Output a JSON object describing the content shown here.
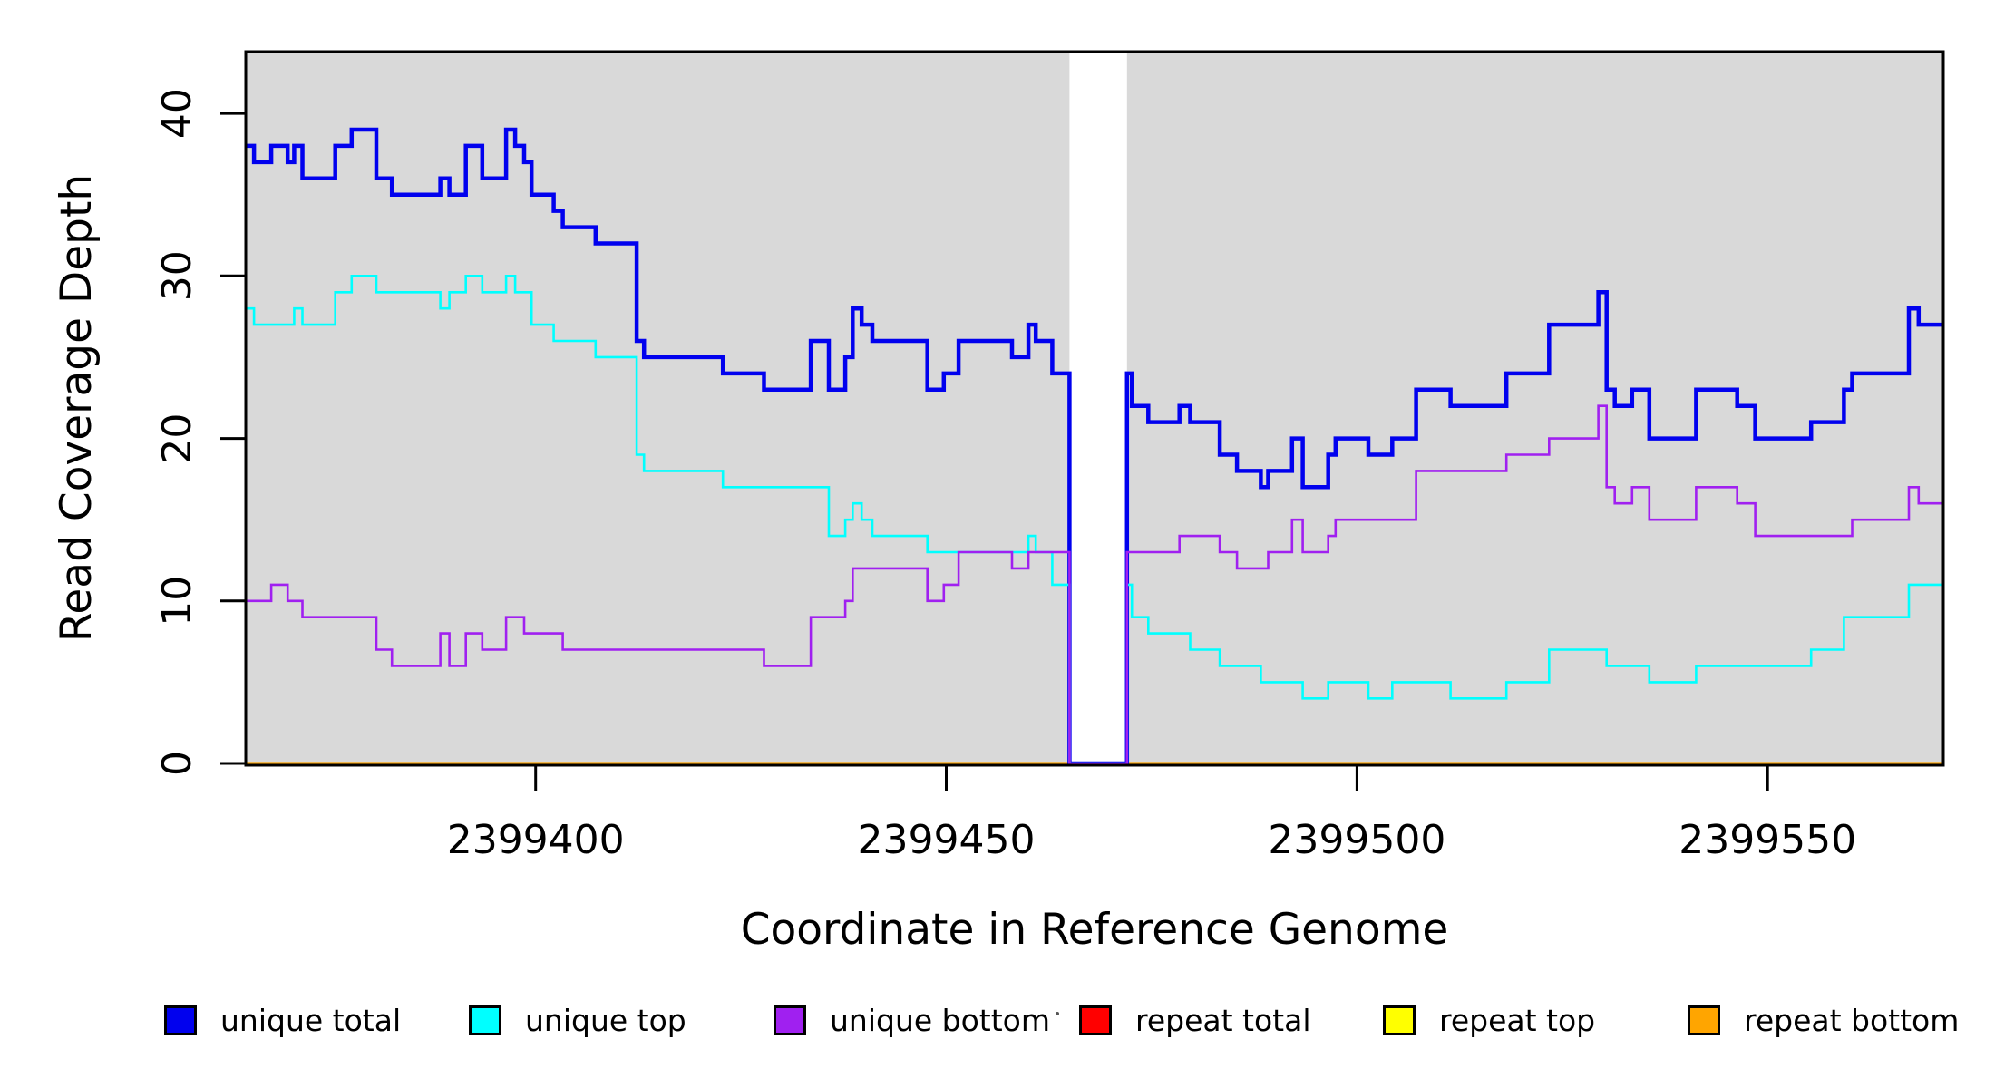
{
  "figure": {
    "background": "#FFFFFF",
    "plot_background": "#D9D9D9",
    "no_data_band_color": "#FFFFFF",
    "box_color": "#000000"
  },
  "chart_data": {
    "type": "line",
    "subtype": "step",
    "title": "",
    "xlabel": "Coordinate in Reference Genome",
    "ylabel": "Read Coverage Depth",
    "xlim": [
      2399364.7,
      2399571.4
    ],
    "ylim": [
      0,
      43.8
    ],
    "grid": false,
    "legend_position": "bottom",
    "x_ticks": {
      "values": [
        2399400,
        2399450,
        2399500,
        2399550
      ],
      "labels": [
        "2399400",
        "2399450",
        "2399500",
        "2399550"
      ]
    },
    "y_ticks": {
      "values": [
        0,
        10,
        20,
        30,
        40
      ],
      "labels": [
        "0",
        "10",
        "20",
        "30",
        "40"
      ]
    },
    "no_data_region": {
      "x_start": 2399465,
      "x_end": 2399472
    },
    "series": [
      {
        "name": "repeat total",
        "color": "#FF0000",
        "width": 3,
        "points": [
          [
            2399364.7,
            0
          ],
          [
            2399571.4,
            0
          ]
        ]
      },
      {
        "name": "repeat top",
        "color": "#FFFF00",
        "width": 3,
        "points": [
          [
            2399364.7,
            0
          ],
          [
            2399571.4,
            0
          ]
        ]
      },
      {
        "name": "repeat bottom",
        "color": "#FFA500",
        "width": 3.2,
        "points": [
          [
            2399364.7,
            0
          ],
          [
            2399571.4,
            0
          ]
        ]
      },
      {
        "name": "unique total",
        "color": "#0101EE",
        "width": 4.5,
        "points": [
          [
            2399364.7,
            38
          ],
          [
            2399365.7,
            37
          ],
          [
            2399367.8,
            38
          ],
          [
            2399369.8,
            37
          ],
          [
            2399370.6,
            38
          ],
          [
            2399371.6,
            36
          ],
          [
            2399375.6,
            38
          ],
          [
            2399377.6,
            39
          ],
          [
            2399380.6,
            36
          ],
          [
            2399382.5,
            35
          ],
          [
            2399388.4,
            36
          ],
          [
            2399389.5,
            35
          ],
          [
            2399391.5,
            38
          ],
          [
            2399393.5,
            36
          ],
          [
            2399396.4,
            39
          ],
          [
            2399397.5,
            38
          ],
          [
            2399398.6,
            37
          ],
          [
            2399399.5,
            35
          ],
          [
            2399402.2,
            34
          ],
          [
            2399403.3,
            33
          ],
          [
            2399407.3,
            32
          ],
          [
            2399412.3,
            26
          ],
          [
            2399413.2,
            25
          ],
          [
            2399422.8,
            24
          ],
          [
            2399427.8,
            23
          ],
          [
            2399433.5,
            26
          ],
          [
            2399435.7,
            23
          ],
          [
            2399437.7,
            25
          ],
          [
            2399438.6,
            28
          ],
          [
            2399439.7,
            27
          ],
          [
            2399441.0,
            26
          ],
          [
            2399447.7,
            23
          ],
          [
            2399449.7,
            24
          ],
          [
            2399451.5,
            26
          ],
          [
            2399458.0,
            25
          ],
          [
            2399460.0,
            27
          ],
          [
            2399460.9,
            26
          ],
          [
            2399462.9,
            24
          ],
          [
            2399465.0,
            0
          ],
          [
            2399472.0,
            24
          ],
          [
            2399472.6,
            22
          ],
          [
            2399474.6,
            21
          ],
          [
            2399478.4,
            22
          ],
          [
            2399479.7,
            21
          ],
          [
            2399483.3,
            19
          ],
          [
            2399485.4,
            18
          ],
          [
            2399488.3,
            17
          ],
          [
            2399489.2,
            18
          ],
          [
            2399492.1,
            20
          ],
          [
            2399493.4,
            17
          ],
          [
            2399496.5,
            19
          ],
          [
            2399497.4,
            20
          ],
          [
            2399501.4,
            19
          ],
          [
            2399504.3,
            20
          ],
          [
            2399507.2,
            23
          ],
          [
            2399511.4,
            22
          ],
          [
            2399518.2,
            24
          ],
          [
            2399523.4,
            27
          ],
          [
            2399529.4,
            29
          ],
          [
            2399530.4,
            23
          ],
          [
            2399531.4,
            22
          ],
          [
            2399533.5,
            23
          ],
          [
            2399535.6,
            20
          ],
          [
            2399541.3,
            23
          ],
          [
            2399546.3,
            22
          ],
          [
            2399548.5,
            20
          ],
          [
            2399555.3,
            21
          ],
          [
            2399559.3,
            23
          ],
          [
            2399560.3,
            24
          ],
          [
            2399567.2,
            28
          ],
          [
            2399568.4,
            27
          ],
          [
            2399571.4,
            27
          ]
        ]
      },
      {
        "name": "unique top",
        "color": "#00FFFF",
        "width": 2.6,
        "points": [
          [
            2399364.7,
            28
          ],
          [
            2399365.7,
            27
          ],
          [
            2399370.6,
            28
          ],
          [
            2399371.6,
            27
          ],
          [
            2399375.6,
            29
          ],
          [
            2399377.6,
            30
          ],
          [
            2399380.6,
            29
          ],
          [
            2399388.4,
            28
          ],
          [
            2399389.5,
            29
          ],
          [
            2399391.5,
            30
          ],
          [
            2399393.5,
            29
          ],
          [
            2399396.4,
            30
          ],
          [
            2399397.5,
            29
          ],
          [
            2399399.5,
            27
          ],
          [
            2399402.2,
            26
          ],
          [
            2399407.3,
            25
          ],
          [
            2399412.3,
            19
          ],
          [
            2399413.2,
            18
          ],
          [
            2399422.8,
            17
          ],
          [
            2399435.7,
            14
          ],
          [
            2399437.7,
            15
          ],
          [
            2399438.6,
            16
          ],
          [
            2399439.7,
            15
          ],
          [
            2399441.0,
            14
          ],
          [
            2399447.7,
            13
          ],
          [
            2399460.0,
            14
          ],
          [
            2399460.9,
            13
          ],
          [
            2399462.9,
            11
          ],
          [
            2399465.0,
            0
          ],
          [
            2399472.0,
            11
          ],
          [
            2399472.6,
            9
          ],
          [
            2399474.6,
            8
          ],
          [
            2399479.7,
            7
          ],
          [
            2399483.3,
            6
          ],
          [
            2399488.3,
            5
          ],
          [
            2399493.4,
            4
          ],
          [
            2399496.5,
            5
          ],
          [
            2399501.4,
            4
          ],
          [
            2399504.3,
            5
          ],
          [
            2399511.4,
            4
          ],
          [
            2399518.2,
            5
          ],
          [
            2399523.4,
            7
          ],
          [
            2399530.4,
            6
          ],
          [
            2399535.6,
            5
          ],
          [
            2399541.3,
            6
          ],
          [
            2399555.3,
            7
          ],
          [
            2399559.3,
            9
          ],
          [
            2399567.2,
            11
          ],
          [
            2399571.4,
            11
          ]
        ]
      },
      {
        "name": "unique bottom",
        "color": "#A020F0",
        "width": 2.6,
        "points": [
          [
            2399364.7,
            10
          ],
          [
            2399367.8,
            11
          ],
          [
            2399369.8,
            10
          ],
          [
            2399371.6,
            9
          ],
          [
            2399380.6,
            7
          ],
          [
            2399382.5,
            6
          ],
          [
            2399388.4,
            8
          ],
          [
            2399389.5,
            6
          ],
          [
            2399391.5,
            8
          ],
          [
            2399393.5,
            7
          ],
          [
            2399396.4,
            9
          ],
          [
            2399398.6,
            8
          ],
          [
            2399403.3,
            7
          ],
          [
            2399427.8,
            6
          ],
          [
            2399433.5,
            9
          ],
          [
            2399437.7,
            10
          ],
          [
            2399438.6,
            12
          ],
          [
            2399447.7,
            10
          ],
          [
            2399449.7,
            11
          ],
          [
            2399451.5,
            13
          ],
          [
            2399458.0,
            12
          ],
          [
            2399460.0,
            13
          ],
          [
            2399465.0,
            0
          ],
          [
            2399472.0,
            13
          ],
          [
            2399478.4,
            14
          ],
          [
            2399483.3,
            13
          ],
          [
            2399485.4,
            12
          ],
          [
            2399489.2,
            13
          ],
          [
            2399492.1,
            15
          ],
          [
            2399493.4,
            13
          ],
          [
            2399496.5,
            14
          ],
          [
            2399497.4,
            15
          ],
          [
            2399507.2,
            18
          ],
          [
            2399518.2,
            19
          ],
          [
            2399523.4,
            20
          ],
          [
            2399529.4,
            22
          ],
          [
            2399530.4,
            17
          ],
          [
            2399531.4,
            16
          ],
          [
            2399533.5,
            17
          ],
          [
            2399535.6,
            15
          ],
          [
            2399541.3,
            17
          ],
          [
            2399546.3,
            16
          ],
          [
            2399548.5,
            14
          ],
          [
            2399560.3,
            15
          ],
          [
            2399567.2,
            17
          ],
          [
            2399568.4,
            16
          ],
          [
            2399571.4,
            16
          ]
        ]
      }
    ],
    "legend": [
      {
        "label": "unique total",
        "color": "#0101EE"
      },
      {
        "label": "unique top",
        "color": "#00FFFF"
      },
      {
        "label": "unique bottom",
        "color": "#A020F0"
      },
      {
        "label": "repeat total",
        "color": "#FF0000"
      },
      {
        "label": "repeat top",
        "color": "#FFFF00"
      },
      {
        "label": "repeat bottom",
        "color": "#FFA500"
      }
    ]
  }
}
